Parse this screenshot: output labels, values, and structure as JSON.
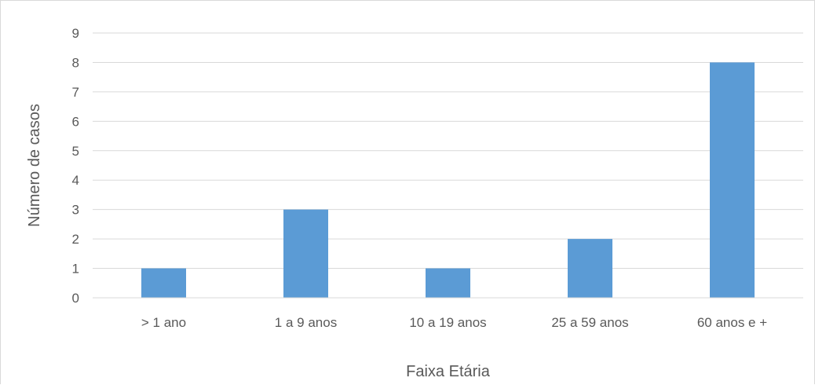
{
  "chart_data": {
    "type": "bar",
    "title": "",
    "xlabel": "Faixa Etária",
    "ylabel": "Número de casos",
    "categories": [
      "> 1 ano",
      "1 a 9 anos",
      "10 a 19 anos",
      "25 a 59 anos",
      "60 anos e +"
    ],
    "values": [
      1,
      3,
      1,
      2,
      8
    ],
    "ylim": [
      0,
      9
    ],
    "yticks": [
      "0",
      "1",
      "2",
      "3",
      "4",
      "5",
      "6",
      "7",
      "8",
      "9"
    ],
    "grid": true,
    "legend": "none",
    "colors": {
      "bar": "#5b9bd5",
      "grid": "#d9d9d9",
      "text": "#595959"
    }
  }
}
